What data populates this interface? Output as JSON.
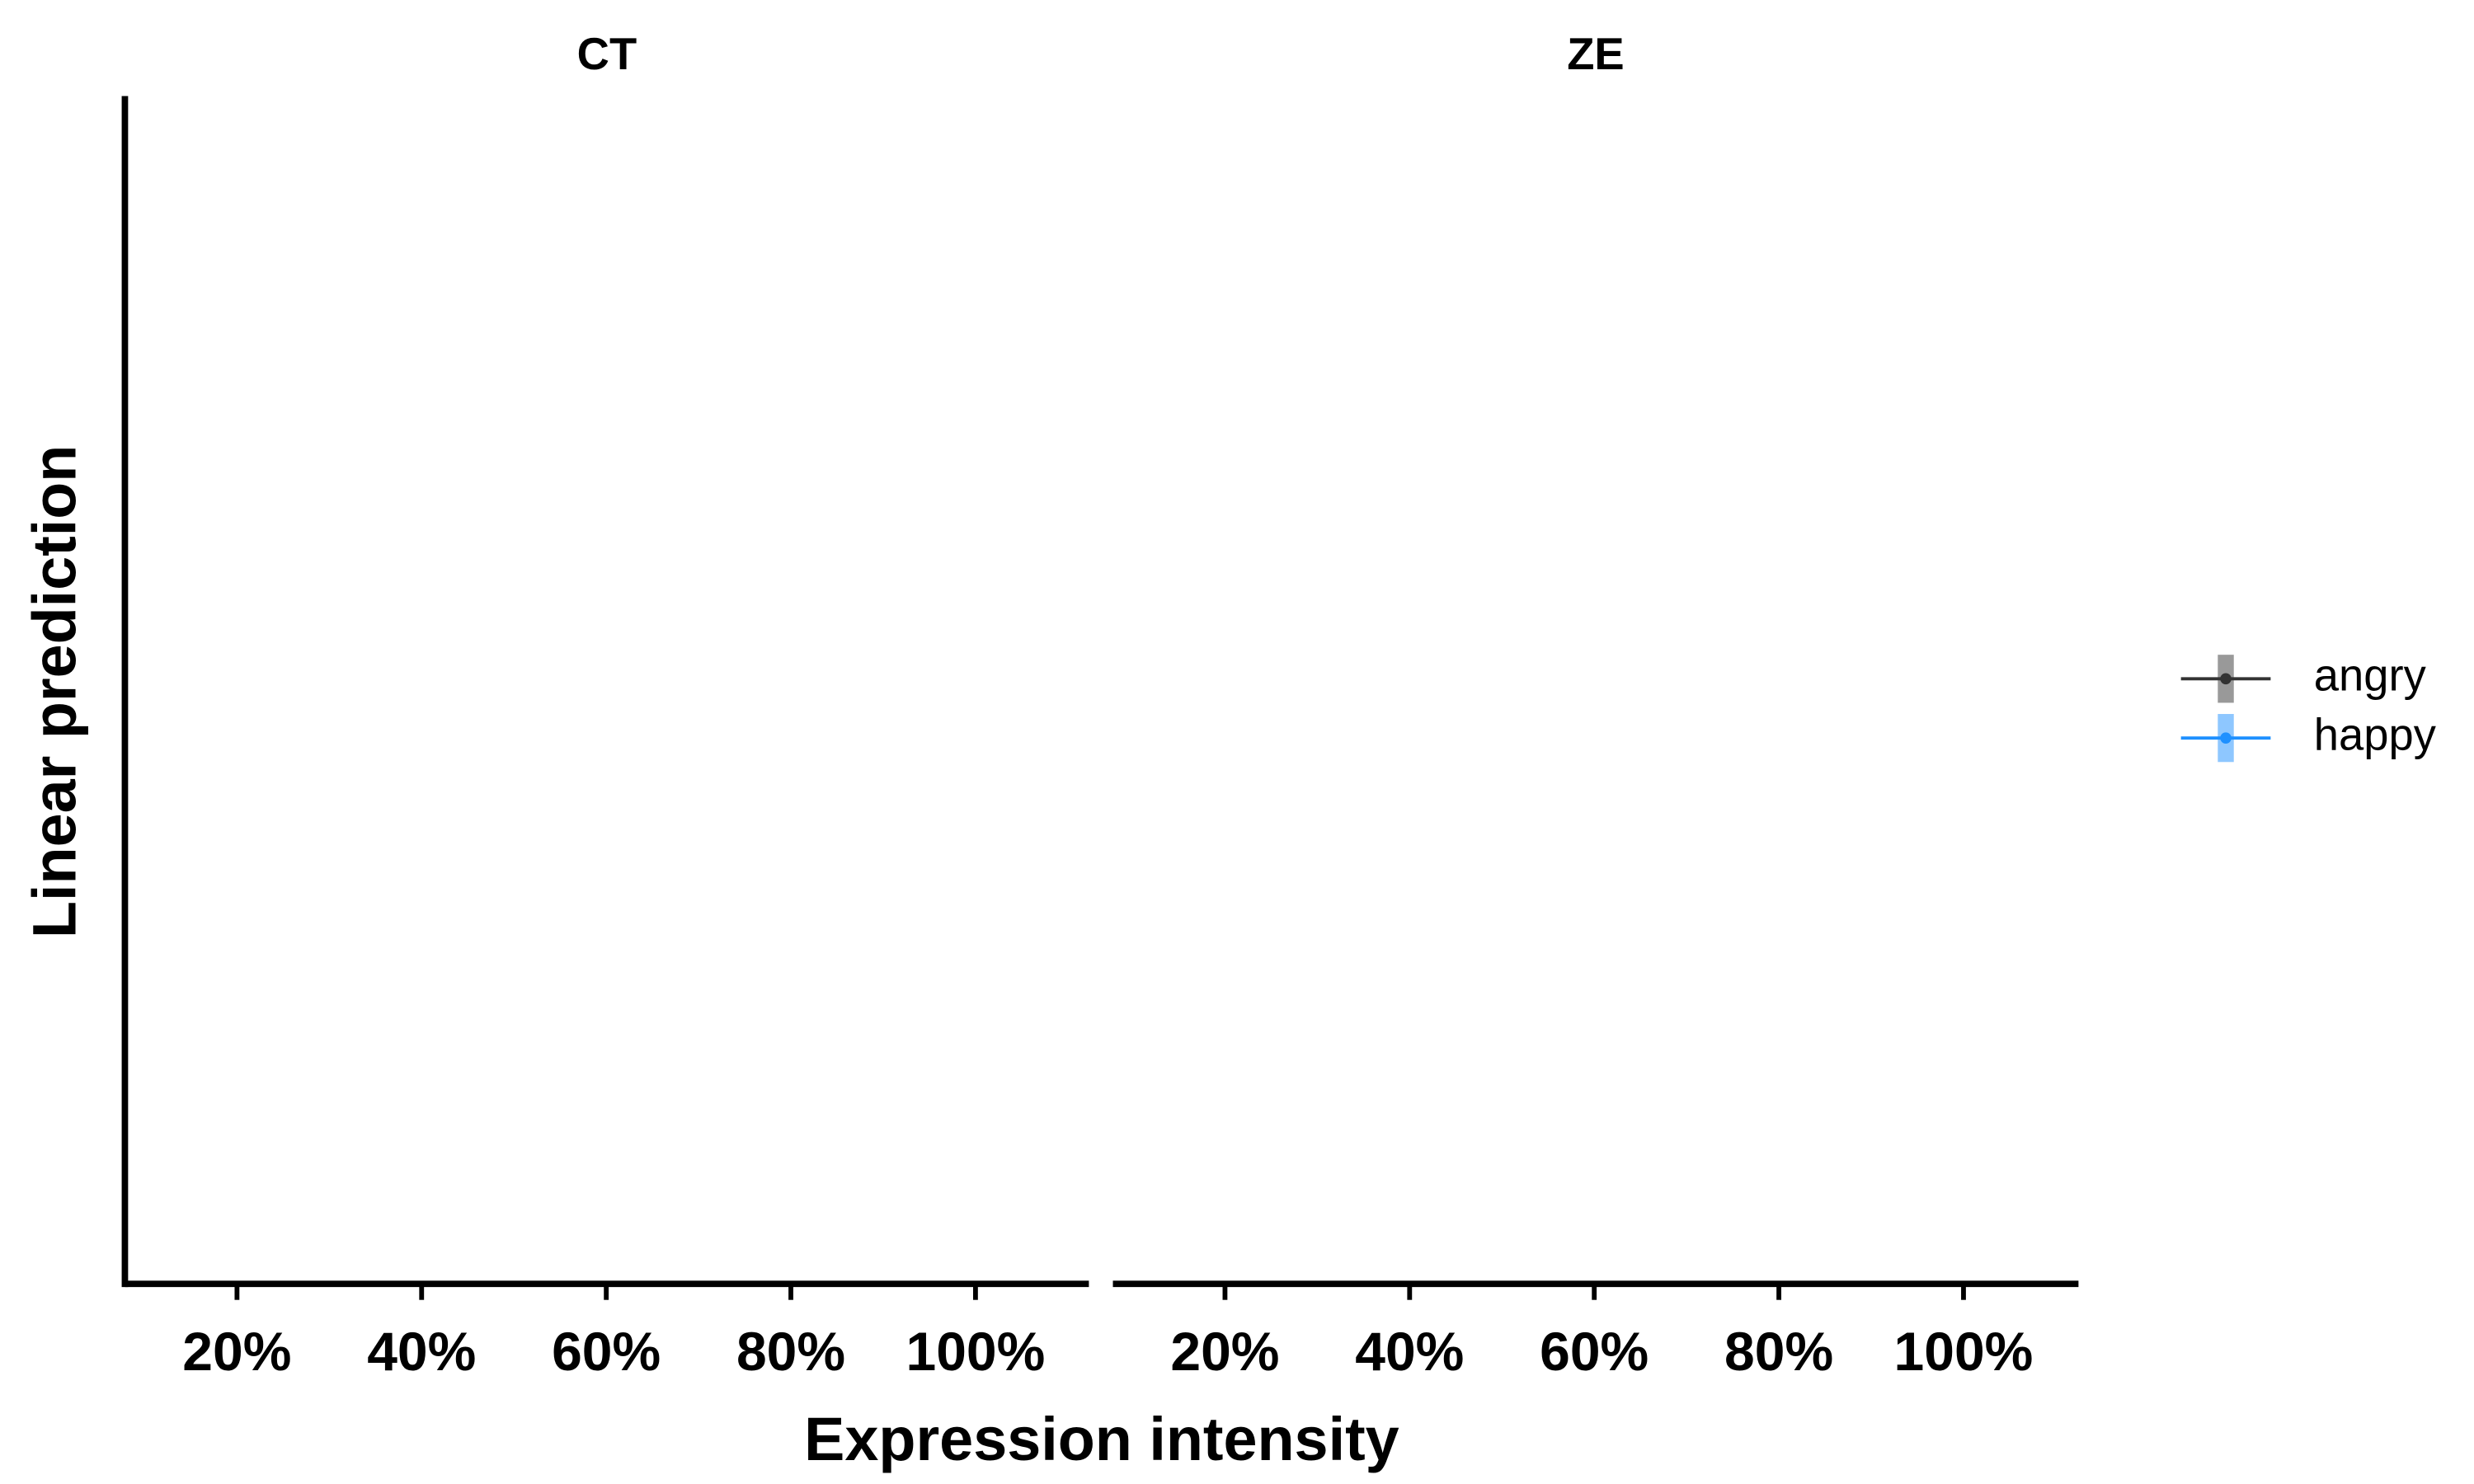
{
  "chart_data": {
    "type": "line",
    "xlabel": "Expression intensity",
    "ylabel": "Linear prediction",
    "categories": [
      "20%",
      "40%",
      "60%",
      "80%",
      "100%"
    ],
    "legend": "right",
    "facets": [
      {
        "title": "CT",
        "series": [
          {
            "name": "angry",
            "color": "#333333",
            "values": [
              null,
              null,
              null,
              null,
              null
            ]
          },
          {
            "name": "happy",
            "color": "#1e90ff",
            "values": [
              null,
              null,
              null,
              null,
              null
            ]
          }
        ]
      },
      {
        "title": "ZE",
        "series": [
          {
            "name": "angry",
            "color": "#333333",
            "values": [
              null,
              null,
              null,
              null,
              null
            ]
          },
          {
            "name": "happy",
            "color": "#1e90ff",
            "values": [
              null,
              null,
              null,
              null,
              null
            ]
          }
        ]
      }
    ]
  }
}
